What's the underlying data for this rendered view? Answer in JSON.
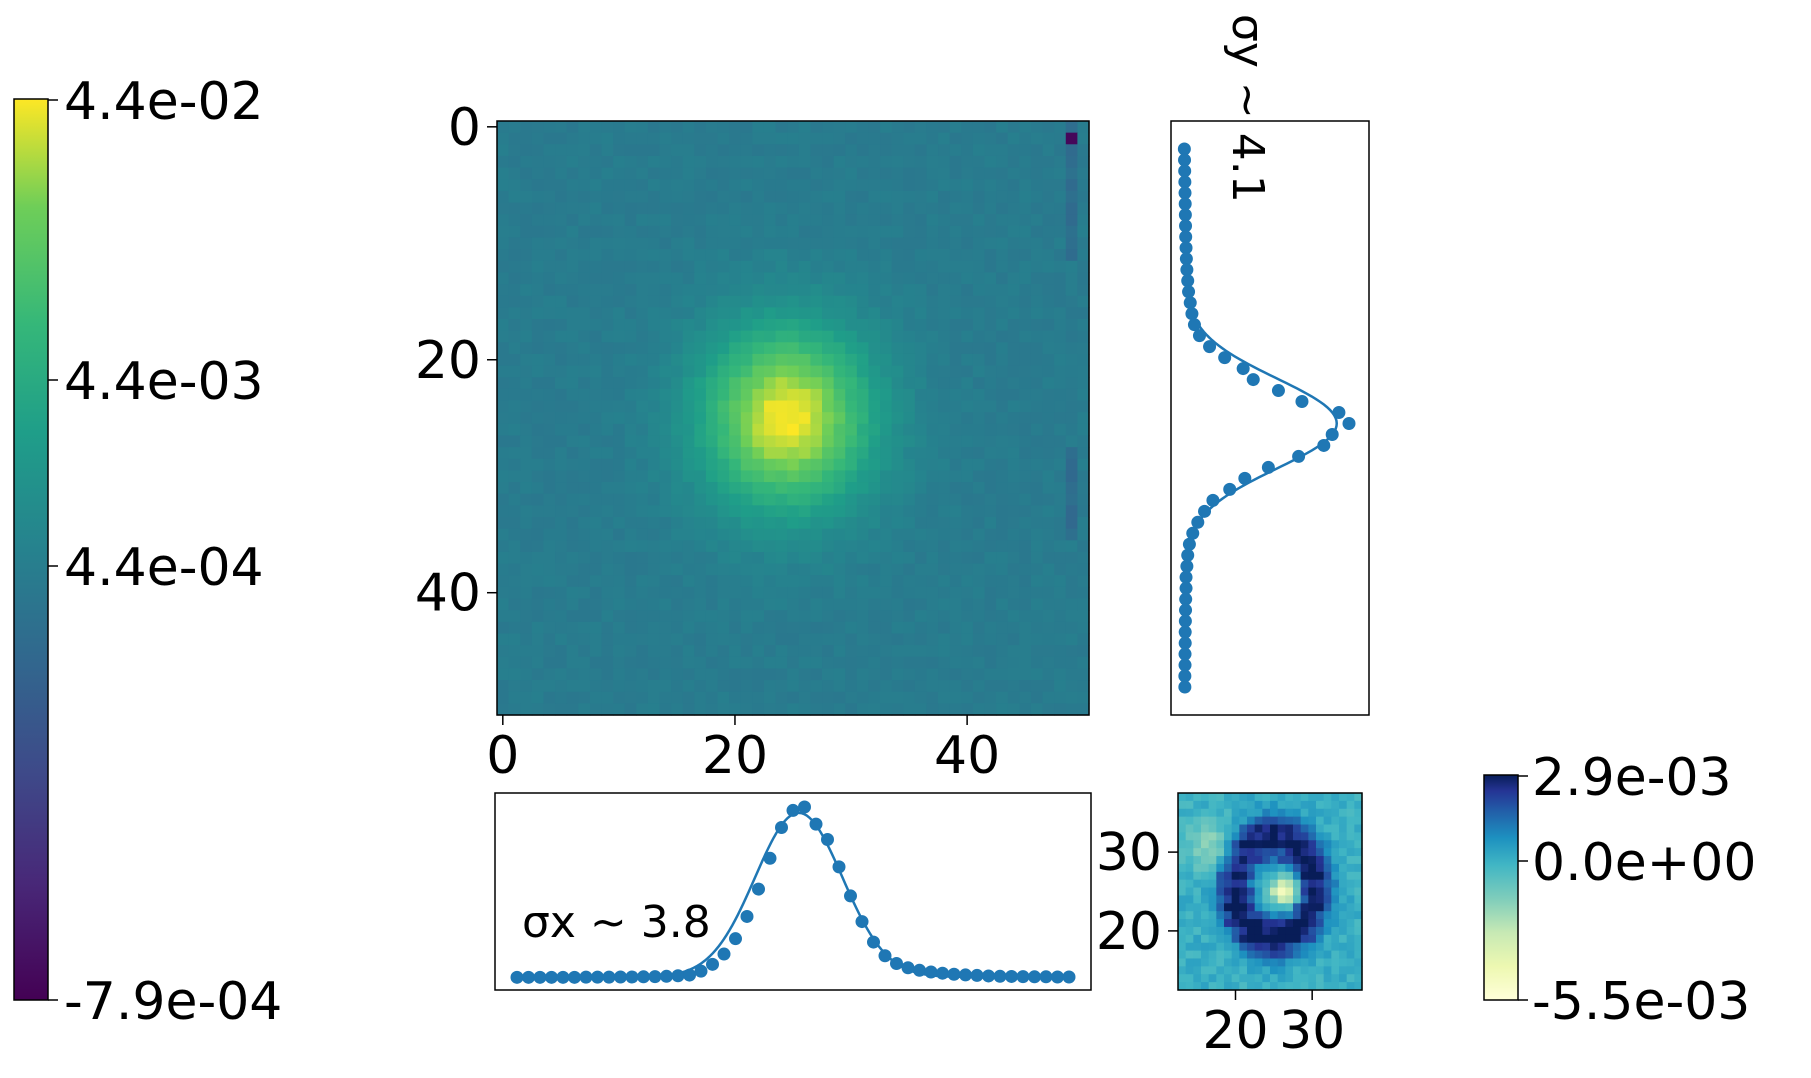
{
  "chart_data": [
    {
      "type": "heatmap",
      "id": "psf-image",
      "description_values": "51x51 pixel PSF stamp, log-scaled intensity, peak near x=24, y=25",
      "x_ticks": [
        "0",
        "20",
        "40"
      ],
      "y_ticks": [
        "0",
        "20",
        "40"
      ],
      "xlim": [
        -0.5,
        50.5
      ],
      "ylim": [
        50.5,
        -0.5
      ],
      "center": {
        "x": 24.5,
        "y": 25.0
      },
      "sigma": {
        "x": 3.8,
        "y": 4.1
      },
      "colormap": "viridis",
      "scale": "log",
      "colorbar": {
        "ticks": [
          "4.4e-02",
          "4.4e-03",
          "4.4e-04",
          "-7.9e-04"
        ],
        "min": -0.00079,
        "max": 0.044
      }
    },
    {
      "type": "line",
      "id": "x-profile",
      "annotation": "σx ~ 3.8",
      "sigma": 3.8,
      "center": 24.5,
      "x_range": [
        0,
        50
      ],
      "points": [
        {
          "x": 0,
          "y": 0.004
        },
        {
          "x": 1,
          "y": 0.004
        },
        {
          "x": 2,
          "y": 0.004
        },
        {
          "x": 3,
          "y": 0.004
        },
        {
          "x": 4,
          "y": 0.004
        },
        {
          "x": 5,
          "y": 0.004
        },
        {
          "x": 6,
          "y": 0.005
        },
        {
          "x": 7,
          "y": 0.005
        },
        {
          "x": 8,
          "y": 0.005
        },
        {
          "x": 9,
          "y": 0.006
        },
        {
          "x": 10,
          "y": 0.006
        },
        {
          "x": 11,
          "y": 0.007
        },
        {
          "x": 12,
          "y": 0.008
        },
        {
          "x": 13,
          "y": 0.01
        },
        {
          "x": 14,
          "y": 0.013
        },
        {
          "x": 15,
          "y": 0.017
        },
        {
          "x": 16,
          "y": 0.04
        },
        {
          "x": 17,
          "y": 0.08
        },
        {
          "x": 18,
          "y": 0.14
        },
        {
          "x": 19,
          "y": 0.23
        },
        {
          "x": 20,
          "y": 0.36
        },
        {
          "x": 21,
          "y": 0.52
        },
        {
          "x": 22,
          "y": 0.7
        },
        {
          "x": 23,
          "y": 0.88
        },
        {
          "x": 24,
          "y": 0.98
        },
        {
          "x": 25,
          "y": 1.0
        },
        {
          "x": 26,
          "y": 0.9
        },
        {
          "x": 27,
          "y": 0.81
        },
        {
          "x": 28,
          "y": 0.65
        },
        {
          "x": 29,
          "y": 0.48
        },
        {
          "x": 30,
          "y": 0.33
        },
        {
          "x": 31,
          "y": 0.21
        },
        {
          "x": 32,
          "y": 0.13
        },
        {
          "x": 33,
          "y": 0.085
        },
        {
          "x": 34,
          "y": 0.06
        },
        {
          "x": 35,
          "y": 0.045
        },
        {
          "x": 36,
          "y": 0.035
        },
        {
          "x": 37,
          "y": 0.028
        },
        {
          "x": 38,
          "y": 0.022
        },
        {
          "x": 39,
          "y": 0.018
        },
        {
          "x": 40,
          "y": 0.015
        },
        {
          "x": 41,
          "y": 0.012
        },
        {
          "x": 42,
          "y": 0.01
        },
        {
          "x": 43,
          "y": 0.009
        },
        {
          "x": 44,
          "y": 0.008
        },
        {
          "x": 45,
          "y": 0.007
        },
        {
          "x": 46,
          "y": 0.007
        },
        {
          "x": 47,
          "y": 0.006
        },
        {
          "x": 48,
          "y": 0.006
        }
      ]
    },
    {
      "type": "line",
      "id": "y-profile",
      "annotation": "σy ~ 4.1",
      "sigma": 4.1,
      "center": 25.0,
      "x_range": [
        0,
        50
      ],
      "points": [
        {
          "x": 0,
          "y": 0.02
        },
        {
          "x": 1,
          "y": 0.021
        },
        {
          "x": 2,
          "y": 0.022
        },
        {
          "x": 3,
          "y": 0.023
        },
        {
          "x": 4,
          "y": 0.024
        },
        {
          "x": 5,
          "y": 0.025
        },
        {
          "x": 6,
          "y": 0.026
        },
        {
          "x": 7,
          "y": 0.027
        },
        {
          "x": 8,
          "y": 0.028
        },
        {
          "x": 9,
          "y": 0.03
        },
        {
          "x": 10,
          "y": 0.032
        },
        {
          "x": 11,
          "y": 0.035
        },
        {
          "x": 12,
          "y": 0.04
        },
        {
          "x": 13,
          "y": 0.045
        },
        {
          "x": 14,
          "y": 0.055
        },
        {
          "x": 15,
          "y": 0.065
        },
        {
          "x": 16,
          "y": 0.08
        },
        {
          "x": 17,
          "y": 0.11
        },
        {
          "x": 18,
          "y": 0.17
        },
        {
          "x": 19,
          "y": 0.26
        },
        {
          "x": 20,
          "y": 0.37
        },
        {
          "x": 21,
          "y": 0.43
        },
        {
          "x": 22,
          "y": 0.58
        },
        {
          "x": 23,
          "y": 0.72
        },
        {
          "x": 24,
          "y": 0.94
        },
        {
          "x": 25,
          "y": 1.0
        },
        {
          "x": 26,
          "y": 0.9
        },
        {
          "x": 27,
          "y": 0.85
        },
        {
          "x": 28,
          "y": 0.7
        },
        {
          "x": 29,
          "y": 0.52
        },
        {
          "x": 30,
          "y": 0.38
        },
        {
          "x": 31,
          "y": 0.29
        },
        {
          "x": 32,
          "y": 0.19
        },
        {
          "x": 33,
          "y": 0.14
        },
        {
          "x": 34,
          "y": 0.1
        },
        {
          "x": 35,
          "y": 0.07
        },
        {
          "x": 36,
          "y": 0.05
        },
        {
          "x": 37,
          "y": 0.04
        },
        {
          "x": 38,
          "y": 0.035
        },
        {
          "x": 39,
          "y": 0.03
        },
        {
          "x": 40,
          "y": 0.03
        },
        {
          "x": 41,
          "y": 0.028
        },
        {
          "x": 42,
          "y": 0.027
        },
        {
          "x": 43,
          "y": 0.026
        },
        {
          "x": 44,
          "y": 0.025
        },
        {
          "x": 45,
          "y": 0.025
        },
        {
          "x": 46,
          "y": 0.024
        },
        {
          "x": 47,
          "y": 0.024
        },
        {
          "x": 48,
          "y": 0.023
        },
        {
          "x": 49,
          "y": 0.023
        }
      ]
    },
    {
      "type": "heatmap",
      "id": "residual",
      "x_ticks": [
        "20",
        "30"
      ],
      "y_ticks": [
        "30",
        "20"
      ],
      "xlim": [
        12.5,
        36.5
      ],
      "ylim": [
        12.5,
        37.5
      ],
      "colormap": "YlGnBu",
      "colorbar": {
        "ticks": [
          "2.9e-03",
          "0.0e+00",
          "-5.5e-03"
        ],
        "min": -0.0055,
        "max": 0.0029
      }
    }
  ],
  "colors": {
    "series": "#1f77b4",
    "axes": "#000000"
  }
}
